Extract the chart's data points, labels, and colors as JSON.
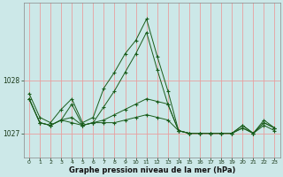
{
  "xlabel": "Graphe pression niveau de la mer (hPa)",
  "background_color": "#cce8e8",
  "grid_color": "#e8a0a0",
  "line_color": "#1a5c1a",
  "ylim": [
    1026.55,
    1029.45
  ],
  "xlim": [
    -0.5,
    23.5
  ],
  "yticks": [
    1027,
    1028
  ],
  "xticks": [
    0,
    1,
    2,
    3,
    4,
    5,
    6,
    7,
    8,
    9,
    10,
    11,
    12,
    13,
    14,
    15,
    16,
    17,
    18,
    19,
    20,
    21,
    22,
    23
  ],
  "series": [
    [
      1027.75,
      1027.3,
      1027.2,
      1027.45,
      1027.65,
      1027.2,
      1027.3,
      1027.85,
      1028.15,
      1028.5,
      1028.75,
      1029.15,
      1028.45,
      1027.8,
      1027.05,
      1027.0,
      1027.0,
      1027.0,
      1027.0,
      1027.0,
      1027.15,
      1027.0,
      1027.2,
      1027.1
    ],
    [
      1027.65,
      1027.2,
      1027.15,
      1027.25,
      1027.55,
      1027.15,
      1027.2,
      1027.5,
      1027.8,
      1028.15,
      1028.5,
      1028.9,
      1028.2,
      1027.55,
      1027.05,
      1027.0,
      1027.0,
      1027.0,
      1027.0,
      1027.0,
      1027.1,
      1027.0,
      1027.15,
      1027.05
    ],
    [
      1027.65,
      1027.2,
      1027.15,
      1027.25,
      1027.2,
      1027.15,
      1027.2,
      1027.2,
      1027.2,
      1027.25,
      1027.3,
      1027.35,
      1027.3,
      1027.25,
      1027.05,
      1027.0,
      1027.0,
      1027.0,
      1027.0,
      1027.0,
      1027.15,
      1027.0,
      1027.25,
      1027.1
    ],
    [
      1027.65,
      1027.2,
      1027.15,
      1027.25,
      1027.3,
      1027.15,
      1027.2,
      1027.25,
      1027.35,
      1027.45,
      1027.55,
      1027.65,
      1027.6,
      1027.55,
      1027.05,
      1027.0,
      1027.0,
      1027.0,
      1027.0,
      1027.0,
      1027.1,
      1027.0,
      1027.2,
      1027.1
    ]
  ],
  "figsize": [
    3.2,
    2.0
  ],
  "dpi": 100
}
